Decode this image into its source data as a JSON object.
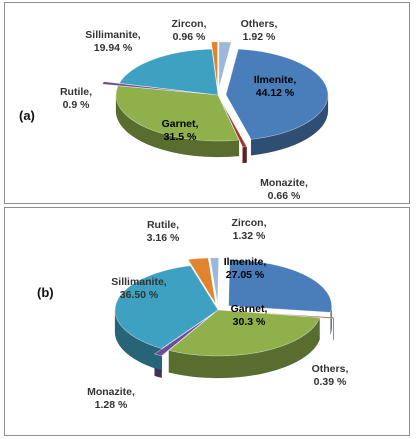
{
  "chart_data": [
    {
      "type": "pie",
      "panel_label": "(a)",
      "slices": [
        {
          "label": "Ilmenite,",
          "pct": "44.12 %",
          "value": 44.12,
          "color": "#4a7ebb"
        },
        {
          "label": "Monazite,",
          "pct": "0.66 %",
          "value": 0.66,
          "color": "#a0332e"
        },
        {
          "label": "Garnet,",
          "pct": "31.5 %",
          "value": 31.5,
          "color": "#8fb04a"
        },
        {
          "label": "Rutile,",
          "pct": "0.9 %",
          "value": 0.9,
          "color": "#6c4d96"
        },
        {
          "label": "Sillimanite,",
          "pct": "19.94 %",
          "value": 19.94,
          "color": "#3ea1c2"
        },
        {
          "label": "Zircon,",
          "pct": "0.96 %",
          "value": 0.96,
          "color": "#e0842d"
        },
        {
          "label": "Others,",
          "pct": "1.92 %",
          "value": 1.92,
          "color": "#9db8dc"
        }
      ]
    },
    {
      "type": "pie",
      "panel_label": "(b)",
      "slices": [
        {
          "label": "Ilmenite,",
          "pct": "27.05 %",
          "value": 27.05,
          "color": "#4a7ebb"
        },
        {
          "label": "Others,",
          "pct": "0.39 %",
          "value": 0.39,
          "color": "#a0332e"
        },
        {
          "label": "Garnet,",
          "pct": "30.3 %",
          "value": 30.3,
          "color": "#8fb04a"
        },
        {
          "label": "Monazite,",
          "pct": "1.28 %",
          "value": 1.28,
          "color": "#6c4d96"
        },
        {
          "label": "Sillimanite,",
          "pct": "36.50 %",
          "value": 36.5,
          "color": "#3ea1c2"
        },
        {
          "label": "Rutile,",
          "pct": "3.16 %",
          "value": 3.16,
          "color": "#e0842d"
        },
        {
          "label": "Zircon,",
          "pct": "1.32 %",
          "value": 1.32,
          "color": "#9db8dc"
        }
      ]
    }
  ]
}
